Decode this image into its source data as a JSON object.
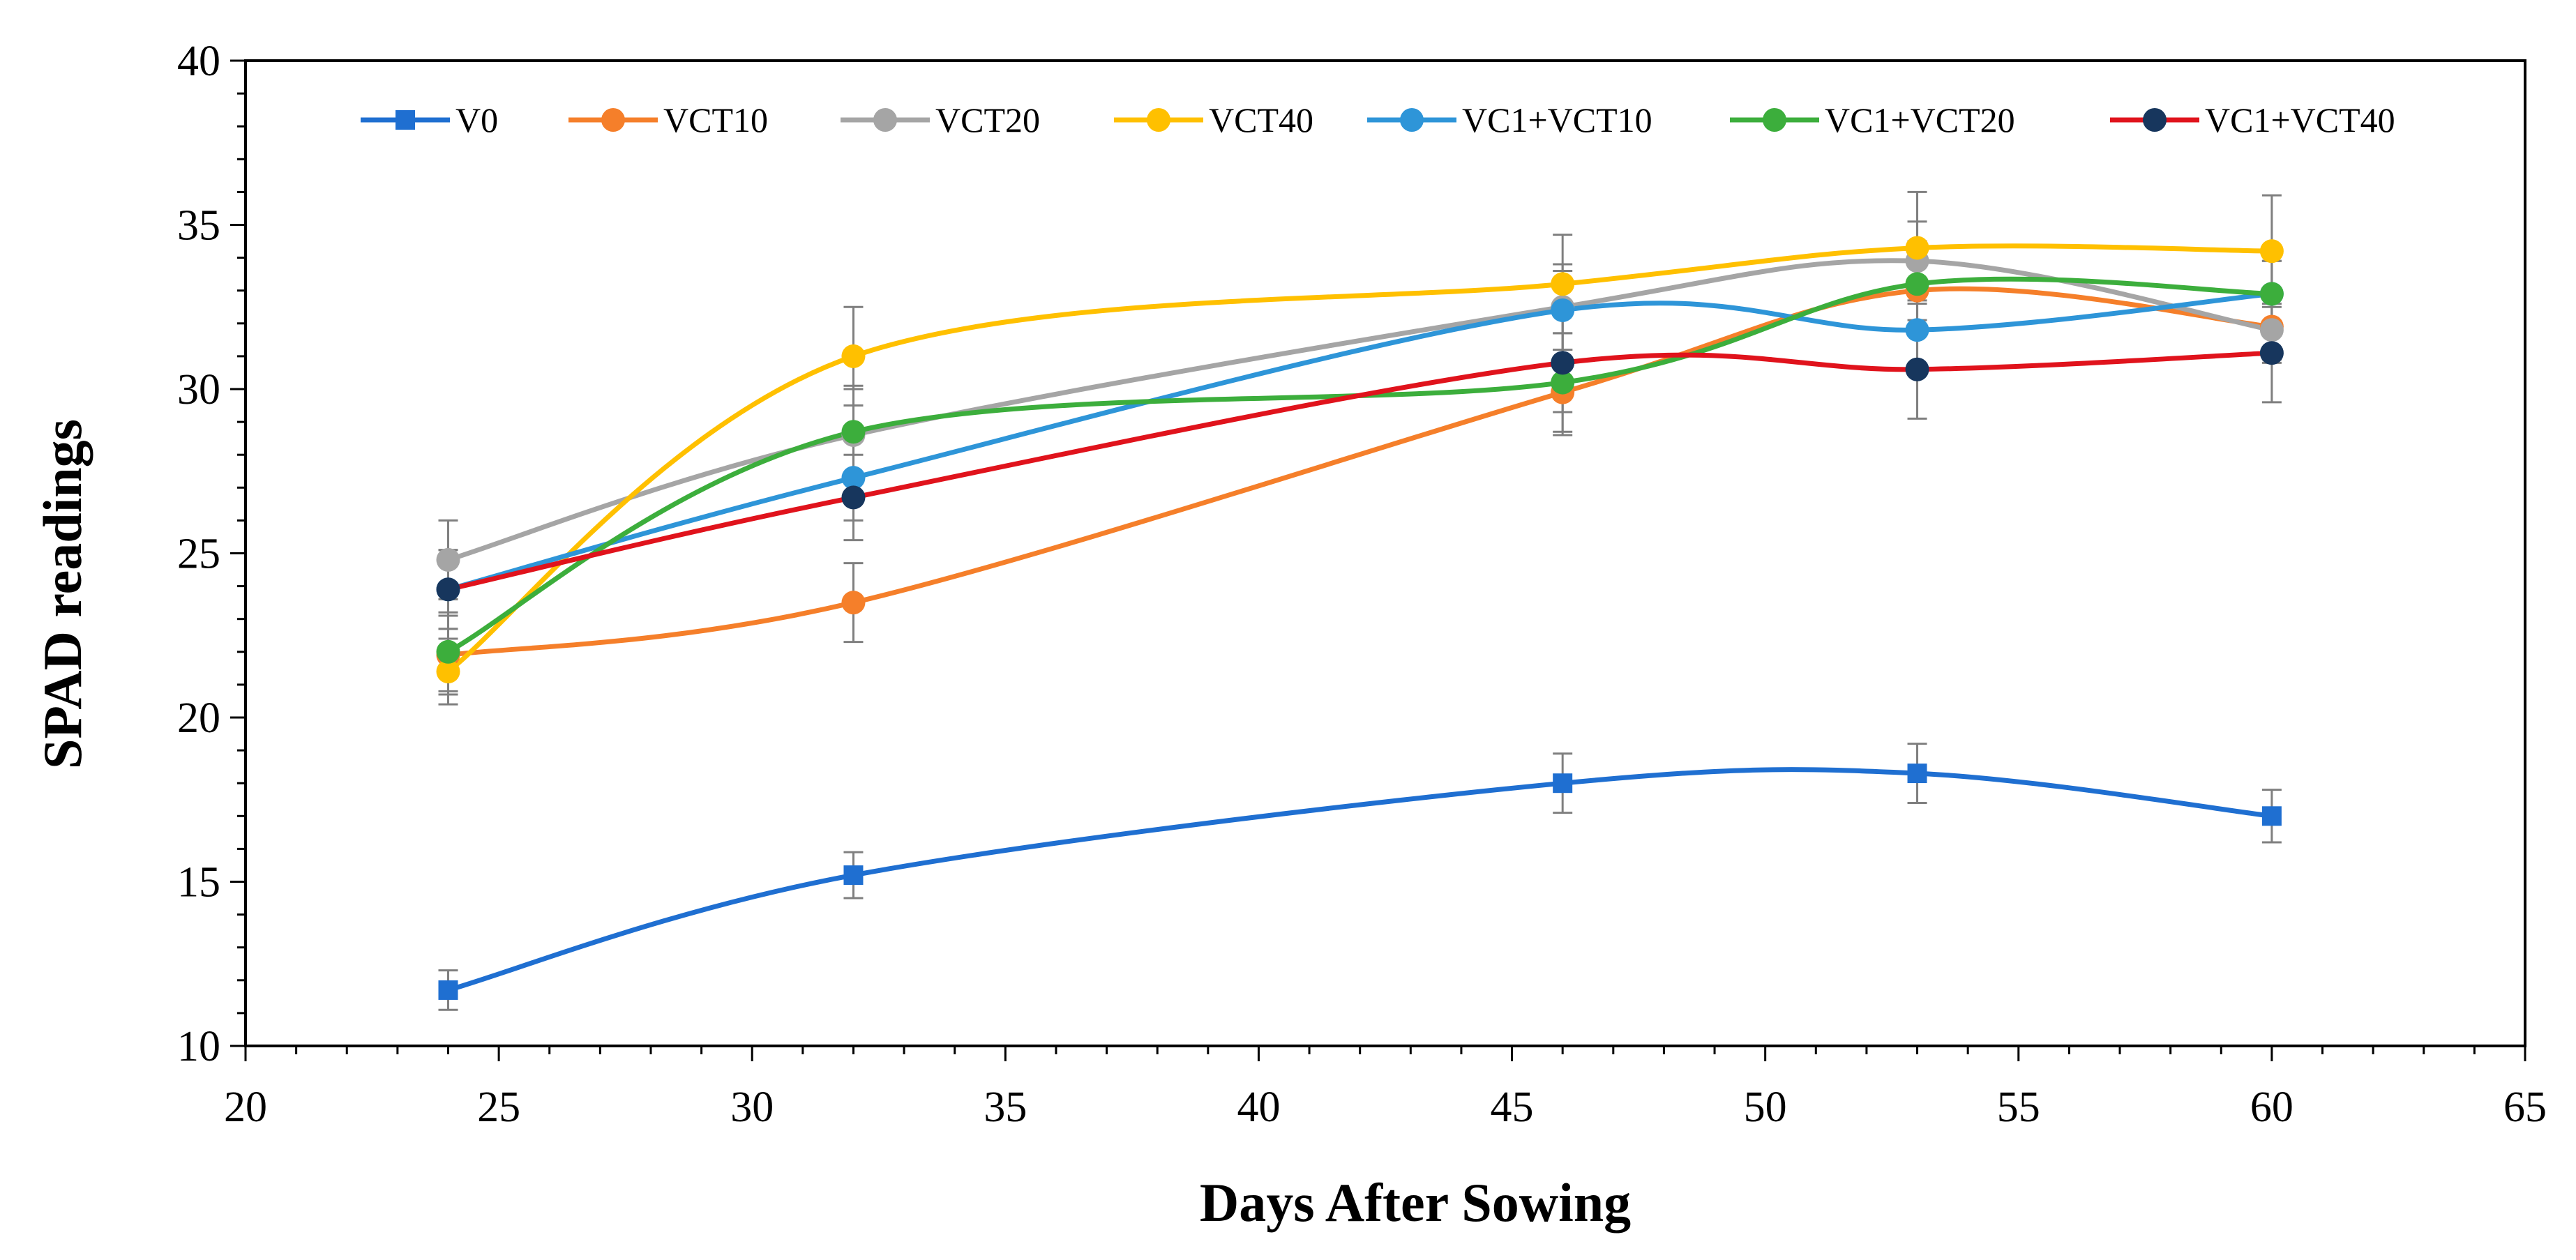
{
  "chart_data": {
    "type": "line",
    "title": "",
    "xlabel": "Days After Sowing",
    "ylabel": "SPAD readings",
    "xlim": [
      20,
      65
    ],
    "ylim": [
      10,
      40
    ],
    "x_ticks": [
      "20",
      "25",
      "30",
      "35",
      "40",
      "45",
      "50",
      "55",
      "60",
      "65"
    ],
    "y_ticks": [
      "10",
      "15",
      "20",
      "25",
      "30",
      "35",
      "40"
    ],
    "x": [
      24,
      32,
      46,
      53,
      60
    ],
    "legend_position": "top",
    "series": [
      {
        "name": "V0",
        "color": "#1F6FD1",
        "marker": "square",
        "values": [
          11.7,
          15.2,
          18.0,
          18.3,
          17.0
        ],
        "errors": [
          0.6,
          0.7,
          0.9,
          0.9,
          0.8
        ]
      },
      {
        "name": "VCT10",
        "color": "#F57F2A",
        "marker": "circle",
        "values": [
          21.9,
          23.5,
          29.9,
          33.0,
          31.9
        ],
        "errors": [
          1.2,
          1.2,
          1.3,
          1.2,
          1.0
        ]
      },
      {
        "name": "VCT20",
        "color": "#A5A5A5",
        "marker": "circle",
        "values": [
          24.8,
          28.6,
          32.5,
          33.9,
          31.8
        ],
        "errors": [
          1.2,
          1.4,
          1.3,
          1.2,
          1.0
        ]
      },
      {
        "name": "VCT40",
        "color": "#FFC000",
        "marker": "circle",
        "values": [
          21.4,
          31.0,
          33.2,
          34.3,
          34.2
        ],
        "errors": [
          1.0,
          1.5,
          1.5,
          1.7,
          1.7
        ]
      },
      {
        "name": "VC1+VCT10",
        "color": "#2E95D8",
        "marker": "circle",
        "values": [
          23.9,
          27.3,
          32.4,
          31.8,
          32.9
        ],
        "errors": [
          1.2,
          1.3,
          1.2,
          1.2,
          1.0
        ]
      },
      {
        "name": "VC1+VCT20",
        "color": "#3CAE3C",
        "marker": "circle",
        "values": [
          22.0,
          28.7,
          30.2,
          33.2,
          32.9
        ],
        "errors": [
          1.2,
          1.4,
          1.5,
          1.3,
          1.0
        ]
      },
      {
        "name": "VC1+VCT40",
        "color": "#E0131C",
        "marker": "circle",
        "marker_color": "#17365D",
        "values": [
          23.9,
          26.7,
          30.8,
          30.6,
          31.1
        ],
        "errors": [
          1.2,
          1.3,
          1.5,
          1.5,
          1.5
        ]
      }
    ]
  }
}
